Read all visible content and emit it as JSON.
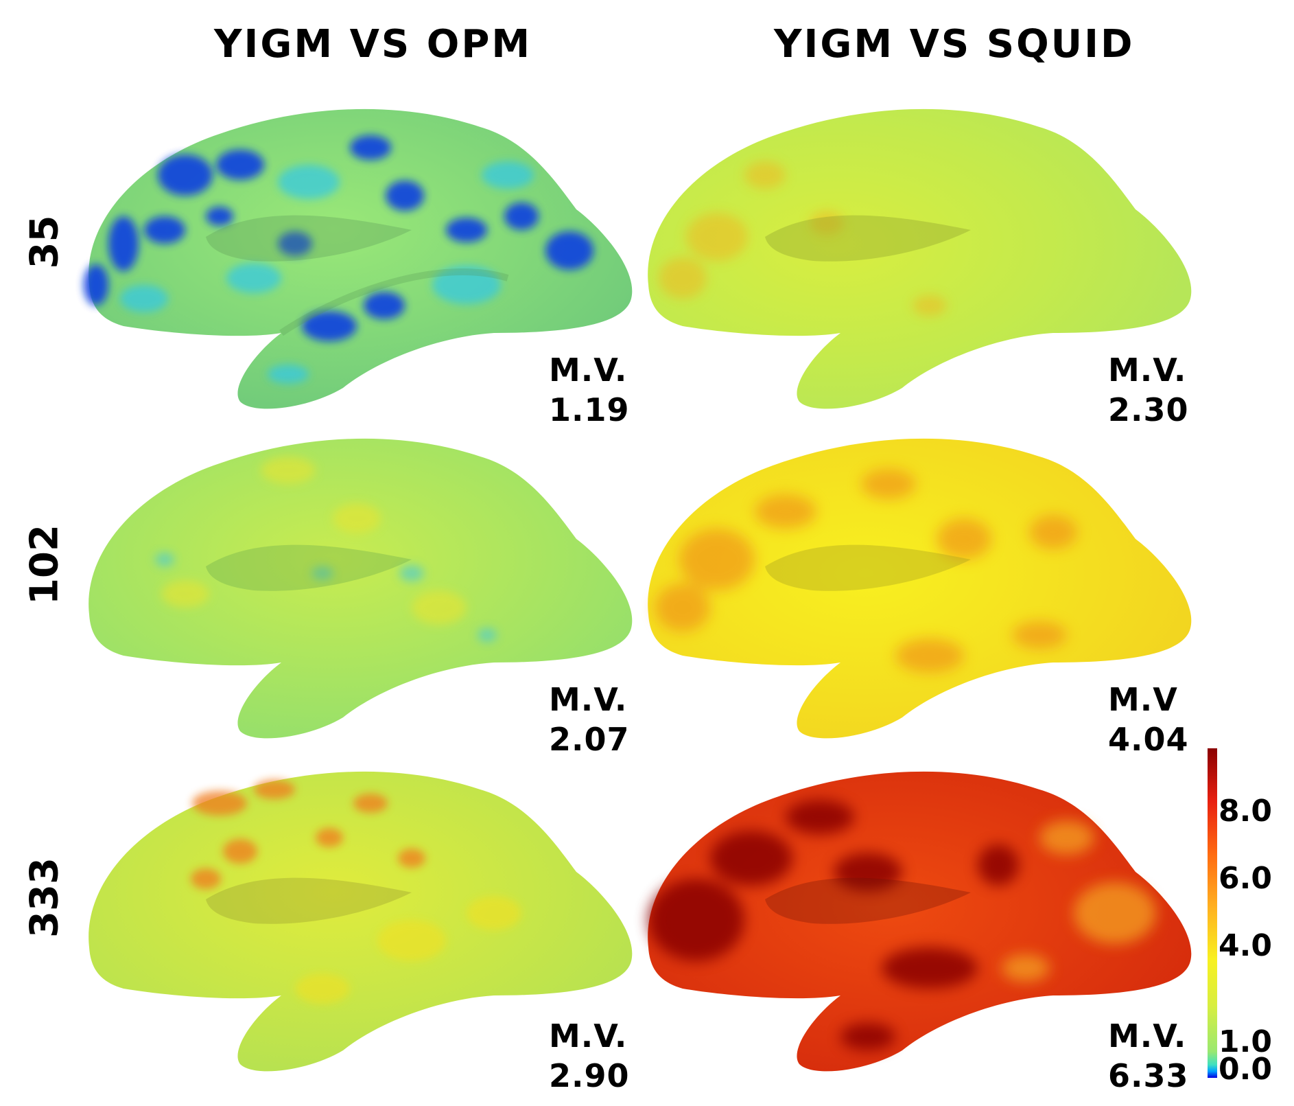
{
  "columns": [
    "YIGM VS OPM",
    "YIGM VS SQUID"
  ],
  "rows": [
    "35",
    "102",
    "333"
  ],
  "panels": [
    [
      {
        "mv_label": "M.V.",
        "mv_value": "1.19"
      },
      {
        "mv_label": "M.V.",
        "mv_value": "2.30"
      }
    ],
    [
      {
        "mv_label": "M.V.",
        "mv_value": "2.07"
      },
      {
        "mv_label": "M.V",
        "mv_value": "4.04"
      }
    ],
    [
      {
        "mv_label": "M.V.",
        "mv_value": "2.90"
      },
      {
        "mv_label": "M.V.",
        "mv_value": "6.33"
      }
    ]
  ],
  "colorbar": {
    "ticks": [
      "8.0",
      "6.0",
      "4.0",
      "1.0",
      "0.0"
    ],
    "colormap": "jet"
  },
  "colors": {
    "low": "#0000ee",
    "cyan": "#33ccee",
    "green": "#8fe070",
    "yellow": "#f2f030",
    "orange": "#ff9a1a",
    "red": "#e22a10",
    "dark_red": "#8a0000"
  }
}
